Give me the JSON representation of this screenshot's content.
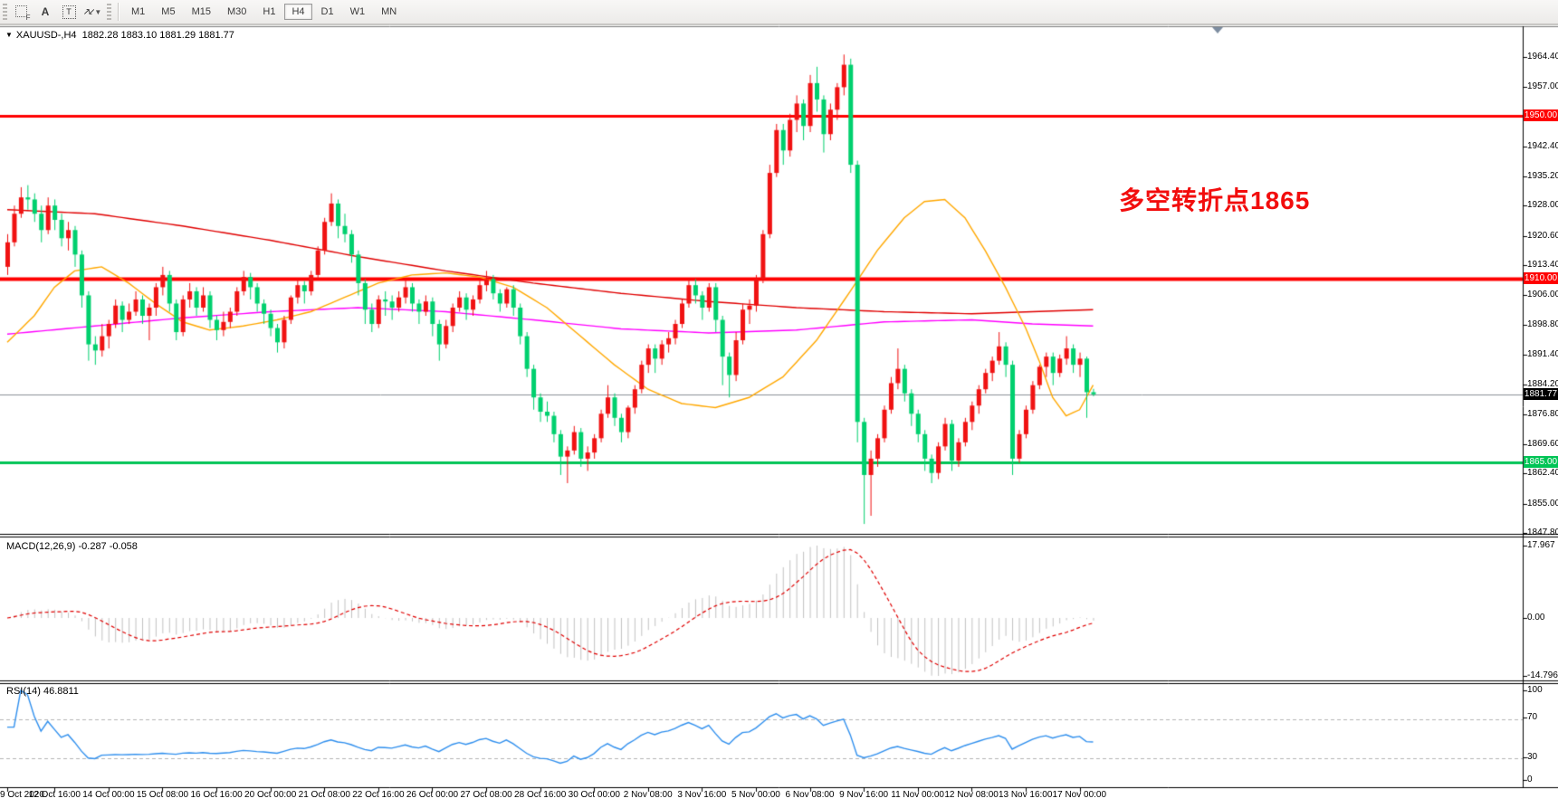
{
  "toolbar": {
    "tool_labels": {
      "f": "F",
      "a": "A",
      "t": "T",
      "arrow1": "↗",
      "arrow2": "↙",
      "caret": "▼"
    },
    "timeframes": [
      "M1",
      "M5",
      "M15",
      "M30",
      "H1",
      "H4",
      "D1",
      "W1",
      "MN"
    ],
    "active_timeframe": "H4"
  },
  "chart_title": {
    "marker": "▼",
    "symbol": "XAUUSD-,H4",
    "ohlc": "1882.28 1883.10 1881.29 1881.77"
  },
  "annotation": {
    "text": "多空转折点1865",
    "color": "#f20d0d"
  },
  "macd_panel": {
    "label": "MACD(12,26,9)",
    "values": "-0.287 -0.058",
    "axis": [
      "17.967",
      "0.00",
      "-14.796"
    ]
  },
  "rsi_panel": {
    "label": "RSI(14)",
    "value": "46.8811",
    "axis": [
      "100",
      "70",
      "30",
      "0"
    ]
  },
  "price_axis": {
    "labels": [
      "1964.40",
      "1957.00",
      "1942.40",
      "1935.20",
      "1928.00",
      "1920.60",
      "1913.40",
      "1906.00",
      "1898.80",
      "1891.40",
      "1884.20",
      "1876.80",
      "1869.60",
      "1862.40",
      "1855.00",
      "1847.80"
    ]
  },
  "chart_data": {
    "type": "candlestick",
    "symbol": "XAUUSD-",
    "timeframe": "H4",
    "price_range": {
      "top": 1964.4,
      "bottom": 1847.8
    },
    "colors": {
      "up": "#f01212",
      "down": "#00d06e",
      "bid_line": "#8a9096",
      "level_red": "#ff0000",
      "level_green": "#00c455"
    },
    "levels": [
      {
        "price": 1950.0,
        "label": "1950.00",
        "color": "#ff0000",
        "width": 3
      },
      {
        "price": 1910.0,
        "label": "1910.00",
        "color": "#ff0000",
        "width": 4
      },
      {
        "price": 1865.0,
        "label": "1865.00",
        "color": "#00c455",
        "width": 3
      }
    ],
    "current_price": {
      "price": 1881.77,
      "label": "1881.77",
      "badge_bg": "#000000"
    },
    "time_labels": [
      {
        "i": 0,
        "t": "9 Oct 2020"
      },
      {
        "i": 7,
        "t": "12 Oct 16:00"
      },
      {
        "i": 15,
        "t": "14 Oct 00:00"
      },
      {
        "i": 23,
        "t": "15 Oct 08:00"
      },
      {
        "i": 31,
        "t": "16 Oct 16:00"
      },
      {
        "i": 39,
        "t": "20 Oct 00:00"
      },
      {
        "i": 47,
        "t": "21 Oct 08:00"
      },
      {
        "i": 55,
        "t": "22 Oct 16:00"
      },
      {
        "i": 63,
        "t": "26 Oct 00:00"
      },
      {
        "i": 71,
        "t": "27 Oct 08:00"
      },
      {
        "i": 79,
        "t": "28 Oct 16:00"
      },
      {
        "i": 87,
        "t": "30 Oct 00:00"
      },
      {
        "i": 95,
        "t": "2 Nov 08:00"
      },
      {
        "i": 103,
        "t": "3 Nov 16:00"
      },
      {
        "i": 111,
        "t": "5 Nov 00:00"
      },
      {
        "i": 119,
        "t": "6 Nov 08:00"
      },
      {
        "i": 127,
        "t": "9 Nov 16:00"
      },
      {
        "i": 135,
        "t": "11 Nov 00:00"
      },
      {
        "i": 143,
        "t": "12 Nov 08:00"
      },
      {
        "i": 151,
        "t": "13 Nov 16:00"
      },
      {
        "i": 159,
        "t": "17 Nov 00:00"
      }
    ],
    "candles": [
      [
        1913,
        1921,
        1911,
        1919
      ],
      [
        1919,
        1928,
        1918,
        1926
      ],
      [
        1926,
        1932.5,
        1925,
        1930
      ],
      [
        1930,
        1933,
        1927,
        1929.5
      ],
      [
        1929.5,
        1931,
        1924,
        1926
      ],
      [
        1926,
        1928,
        1919,
        1922
      ],
      [
        1922,
        1930,
        1921,
        1928
      ],
      [
        1928,
        1929.5,
        1922,
        1924.5
      ],
      [
        1924.5,
        1926,
        1918,
        1920
      ],
      [
        1920,
        1924,
        1917,
        1922
      ],
      [
        1922,
        1923,
        1913,
        1916
      ],
      [
        1916,
        1917,
        1903,
        1906
      ],
      [
        1906,
        1907,
        1890,
        1894
      ],
      [
        1894,
        1896,
        1889,
        1892.5
      ],
      [
        1892.5,
        1899,
        1891,
        1896
      ],
      [
        1896,
        1900,
        1893,
        1899
      ],
      [
        1899,
        1905,
        1898,
        1903.5
      ],
      [
        1903.5,
        1904.5,
        1897,
        1900
      ],
      [
        1900,
        1904,
        1899,
        1902
      ],
      [
        1902,
        1907,
        1901,
        1905
      ],
      [
        1905,
        1906,
        1899,
        1901
      ],
      [
        1901,
        1904,
        1895,
        1903
      ],
      [
        1903,
        1909,
        1901,
        1908
      ],
      [
        1908,
        1913,
        1906,
        1911
      ],
      [
        1911,
        1912,
        1902,
        1904
      ],
      [
        1904,
        1905,
        1895,
        1897
      ],
      [
        1897,
        1906,
        1896,
        1905
      ],
      [
        1905,
        1909,
        1903,
        1907
      ],
      [
        1907,
        1908,
        1901,
        1903
      ],
      [
        1903,
        1908,
        1902,
        1906
      ],
      [
        1906,
        1907,
        1898,
        1900
      ],
      [
        1900,
        1901,
        1895,
        1897.5
      ],
      [
        1897.5,
        1902,
        1896,
        1899.5
      ],
      [
        1899.5,
        1903,
        1898,
        1902
      ],
      [
        1902,
        1908,
        1901,
        1907
      ],
      [
        1907,
        1912,
        1906,
        1910.5
      ],
      [
        1910.5,
        1911.5,
        1905,
        1908
      ],
      [
        1908,
        1909,
        1902,
        1904
      ],
      [
        1904,
        1905,
        1899,
        1901.5
      ],
      [
        1901.5,
        1902.5,
        1896,
        1898
      ],
      [
        1898,
        1899,
        1892,
        1894.5
      ],
      [
        1894.5,
        1901,
        1893,
        1900
      ],
      [
        1900,
        1906,
        1899,
        1905.5
      ],
      [
        1905.5,
        1910,
        1904,
        1908.5
      ],
      [
        1908.5,
        1909.5,
        1904,
        1907
      ],
      [
        1907,
        1912,
        1906,
        1911
      ],
      [
        1911,
        1918,
        1910,
        1917
      ],
      [
        1917,
        1925,
        1916,
        1924
      ],
      [
        1924,
        1931,
        1923,
        1928.5
      ],
      [
        1928.5,
        1929.5,
        1920,
        1923
      ],
      [
        1923,
        1926,
        1919,
        1921
      ],
      [
        1921,
        1922,
        1914,
        1916
      ],
      [
        1916,
        1917,
        1906,
        1909
      ],
      [
        1909,
        1910,
        1899,
        1902.5
      ],
      [
        1902.5,
        1904,
        1897,
        1899
      ],
      [
        1899,
        1906,
        1898,
        1905
      ],
      [
        1905,
        1907,
        1901,
        1904.5
      ],
      [
        1904.5,
        1906,
        1900,
        1903
      ],
      [
        1903,
        1907,
        1902,
        1905.5
      ],
      [
        1905.5,
        1910,
        1904,
        1908
      ],
      [
        1908,
        1909,
        1902,
        1904
      ],
      [
        1904,
        1905,
        1899,
        1902
      ],
      [
        1902,
        1906,
        1901,
        1904.5
      ],
      [
        1904.5,
        1905.5,
        1896,
        1899
      ],
      [
        1899,
        1900,
        1890,
        1894
      ],
      [
        1894,
        1900,
        1893,
        1898.5
      ],
      [
        1898.5,
        1904,
        1897,
        1903
      ],
      [
        1903,
        1907,
        1902,
        1905.5
      ],
      [
        1905.5,
        1906.5,
        1900,
        1902.5
      ],
      [
        1902.5,
        1906,
        1901,
        1905
      ],
      [
        1905,
        1910,
        1904,
        1908.5
      ],
      [
        1908.5,
        1912,
        1907,
        1910
      ],
      [
        1910,
        1911,
        1905,
        1906.5
      ],
      [
        1906.5,
        1907.5,
        1902,
        1904
      ],
      [
        1904,
        1908,
        1903,
        1907.5
      ],
      [
        1907.5,
        1908.5,
        1901,
        1903
      ],
      [
        1903,
        1904,
        1894,
        1896
      ],
      [
        1896,
        1897,
        1886,
        1888
      ],
      [
        1888,
        1889,
        1878,
        1881
      ],
      [
        1881,
        1882,
        1875,
        1877.5
      ],
      [
        1877.5,
        1880,
        1875,
        1876.5
      ],
      [
        1876.5,
        1877.5,
        1870,
        1872
      ],
      [
        1872,
        1873,
        1862,
        1866.5
      ],
      [
        1866.5,
        1869,
        1860,
        1868
      ],
      [
        1868,
        1874,
        1867,
        1872.5
      ],
      [
        1872.5,
        1873.5,
        1864,
        1866
      ],
      [
        1866,
        1869,
        1863,
        1867.5
      ],
      [
        1867.5,
        1872,
        1866,
        1871
      ],
      [
        1871,
        1878,
        1870,
        1877
      ],
      [
        1877,
        1884,
        1876,
        1881
      ],
      [
        1881,
        1882,
        1874,
        1876
      ],
      [
        1876,
        1877,
        1870,
        1872.5
      ],
      [
        1872.5,
        1879,
        1871,
        1878.5
      ],
      [
        1878.5,
        1884,
        1877,
        1883
      ],
      [
        1883,
        1890,
        1882,
        1889
      ],
      [
        1889,
        1894,
        1887,
        1893
      ],
      [
        1893,
        1894,
        1887,
        1890.5
      ],
      [
        1890.5,
        1895,
        1889,
        1894
      ],
      [
        1894,
        1897,
        1892,
        1895.5
      ],
      [
        1895.5,
        1900,
        1894,
        1899
      ],
      [
        1899,
        1905,
        1898,
        1904
      ],
      [
        1904,
        1910,
        1903,
        1908.5
      ],
      [
        1908.5,
        1910,
        1904,
        1906
      ],
      [
        1906,
        1907,
        1900,
        1903
      ],
      [
        1903,
        1909,
        1902,
        1908
      ],
      [
        1908,
        1909,
        1897,
        1900
      ],
      [
        1900,
        1901,
        1884,
        1891
      ],
      [
        1891,
        1892,
        1881,
        1886.5
      ],
      [
        1886.5,
        1897,
        1885,
        1895
      ],
      [
        1895,
        1904,
        1894,
        1902.5
      ],
      [
        1902.5,
        1905,
        1899,
        1903.5
      ],
      [
        1903.5,
        1911,
        1902,
        1910
      ],
      [
        1910,
        1922,
        1909,
        1921
      ],
      [
        1921,
        1938,
        1920,
        1936
      ],
      [
        1936,
        1948,
        1935,
        1946.5
      ],
      [
        1946.5,
        1948,
        1938,
        1941.5
      ],
      [
        1941.5,
        1950.5,
        1940,
        1949
      ],
      [
        1949,
        1955,
        1946,
        1953
      ],
      [
        1953,
        1954,
        1944,
        1947.5
      ],
      [
        1947.5,
        1960,
        1946,
        1958
      ],
      [
        1958,
        1962,
        1951,
        1954
      ],
      [
        1954,
        1955,
        1941,
        1945.5
      ],
      [
        1945.5,
        1953,
        1944,
        1951.5
      ],
      [
        1951.5,
        1958,
        1949,
        1957
      ],
      [
        1957,
        1965,
        1955,
        1962.5
      ],
      [
        1962.5,
        1964,
        1936,
        1938
      ],
      [
        1938,
        1939,
        1870,
        1875
      ],
      [
        1875,
        1876,
        1850,
        1862
      ],
      [
        1862,
        1868,
        1852,
        1866
      ],
      [
        1866,
        1872,
        1864,
        1871
      ],
      [
        1871,
        1879,
        1870,
        1878
      ],
      [
        1878,
        1886,
        1877,
        1884.5
      ],
      [
        1884.5,
        1893,
        1883,
        1888
      ],
      [
        1888,
        1889,
        1880,
        1882
      ],
      [
        1882,
        1883,
        1874,
        1877
      ],
      [
        1877,
        1878,
        1870,
        1872
      ],
      [
        1872,
        1873,
        1863,
        1866
      ],
      [
        1866,
        1867,
        1860,
        1862.5
      ],
      [
        1862.5,
        1870,
        1861,
        1869
      ],
      [
        1869,
        1876,
        1868,
        1874.5
      ],
      [
        1874.5,
        1875.5,
        1863,
        1865.5
      ],
      [
        1865.5,
        1871,
        1864,
        1870
      ],
      [
        1870,
        1876,
        1869,
        1875
      ],
      [
        1875,
        1880,
        1873,
        1879
      ],
      [
        1879,
        1884,
        1877,
        1883
      ],
      [
        1883,
        1888,
        1882,
        1887
      ],
      [
        1887,
        1891,
        1885,
        1890
      ],
      [
        1890,
        1897,
        1889,
        1893.5
      ],
      [
        1893.5,
        1894.5,
        1886,
        1889
      ],
      [
        1889,
        1890,
        1862,
        1866
      ],
      [
        1866,
        1873,
        1865,
        1872
      ],
      [
        1872,
        1879,
        1871,
        1878
      ],
      [
        1878,
        1885,
        1877,
        1884
      ],
      [
        1884,
        1889,
        1883,
        1888.5
      ],
      [
        1888.5,
        1892,
        1886,
        1891
      ],
      [
        1891,
        1892,
        1884,
        1887
      ],
      [
        1887,
        1891.5,
        1886,
        1890.5
      ],
      [
        1890.5,
        1896,
        1889,
        1893
      ],
      [
        1893,
        1894,
        1887,
        1889
      ],
      [
        1889,
        1892,
        1886,
        1890.5
      ],
      [
        1890.5,
        1891,
        1876,
        1882.28
      ],
      [
        1882.28,
        1883.1,
        1881.29,
        1881.77
      ]
    ],
    "moving_averages": [
      {
        "name": "slow-ma",
        "color": "#e00000",
        "points": [
          [
            0,
            1927
          ],
          [
            13,
            1926
          ],
          [
            26,
            1923
          ],
          [
            39,
            1919.5
          ],
          [
            52,
            1915.5
          ],
          [
            65,
            1912
          ],
          [
            78,
            1909
          ],
          [
            91,
            1906.5
          ],
          [
            104,
            1904.5
          ],
          [
            117,
            1903
          ],
          [
            130,
            1902
          ],
          [
            143,
            1901.5
          ],
          [
            152,
            1902
          ],
          [
            161,
            1902.5
          ]
        ]
      },
      {
        "name": "medium-ma",
        "color": "#ff00ff",
        "points": [
          [
            0,
            1896.5
          ],
          [
            13,
            1898.5
          ],
          [
            26,
            1900.5
          ],
          [
            39,
            1902
          ],
          [
            52,
            1903
          ],
          [
            65,
            1902
          ],
          [
            78,
            1900
          ],
          [
            91,
            1897.8
          ],
          [
            104,
            1896.8
          ],
          [
            117,
            1897.5
          ],
          [
            130,
            1899.5
          ],
          [
            143,
            1900
          ],
          [
            152,
            1899
          ],
          [
            161,
            1898.5
          ]
        ]
      },
      {
        "name": "fast-ma",
        "color": "#ffa800",
        "points": [
          [
            0,
            1894.5
          ],
          [
            4,
            1901
          ],
          [
            7,
            1908
          ],
          [
            10,
            1912
          ],
          [
            14,
            1913
          ],
          [
            18,
            1909
          ],
          [
            22,
            1904
          ],
          [
            26,
            1899.5
          ],
          [
            30,
            1897.5
          ],
          [
            35,
            1898.5
          ],
          [
            40,
            1900
          ],
          [
            45,
            1902
          ],
          [
            50,
            1905.5
          ],
          [
            55,
            1909
          ],
          [
            60,
            1911
          ],
          [
            65,
            1911.5
          ],
          [
            70,
            1910.5
          ],
          [
            75,
            1908
          ],
          [
            80,
            1903
          ],
          [
            85,
            1896
          ],
          [
            90,
            1889
          ],
          [
            95,
            1883
          ],
          [
            100,
            1879.5
          ],
          [
            105,
            1878.5
          ],
          [
            110,
            1881
          ],
          [
            115,
            1886
          ],
          [
            120,
            1895
          ],
          [
            125,
            1907
          ],
          [
            129,
            1917
          ],
          [
            133,
            1925
          ],
          [
            136,
            1929
          ],
          [
            139,
            1929.5
          ],
          [
            142,
            1925
          ],
          [
            145,
            1917
          ],
          [
            148,
            1908
          ],
          [
            151,
            1898
          ],
          [
            153,
            1890
          ],
          [
            155,
            1881
          ],
          [
            157,
            1876.5
          ],
          [
            159,
            1878
          ],
          [
            161,
            1884
          ]
        ]
      }
    ],
    "macd": {
      "fast": 12,
      "slow": 26,
      "signal": 9,
      "bar_color": "#c2c2c2",
      "signal_color": "#e00000",
      "axis_max": 17.967,
      "axis_min": -14.796,
      "current_main": -0.287,
      "current_signal": -0.058
    },
    "rsi": {
      "period": 14,
      "color": "#2f8fee",
      "levels": [
        70,
        30
      ],
      "current": 46.8811
    }
  }
}
